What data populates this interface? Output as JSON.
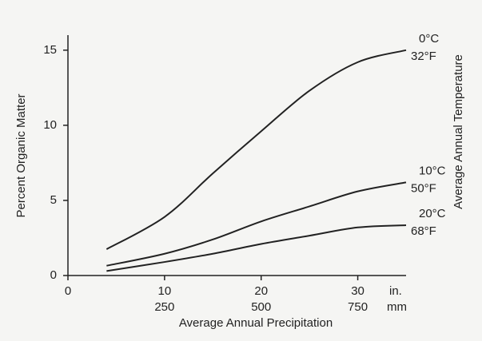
{
  "chart_data": {
    "type": "line",
    "x_label": "Average Annual Precipitation",
    "y_label": "Percent Organic Matter",
    "legend_title": "Average Annual Temperature",
    "x_unit": "in.",
    "x2_unit": "mm",
    "x": [
      4,
      10,
      15,
      20,
      25,
      30,
      35
    ],
    "series": [
      {
        "name": "0°C",
        "alt_name": "32°F",
        "color": "#222222",
        "values": [
          1.75,
          3.9,
          6.8,
          9.6,
          12.3,
          14.2,
          15.0
        ]
      },
      {
        "name": "10°C",
        "alt_name": "50°F",
        "color": "#222222",
        "values": [
          0.65,
          1.45,
          2.4,
          3.6,
          4.6,
          5.6,
          6.2
        ]
      },
      {
        "name": "20°C",
        "alt_name": "68°F",
        "color": "#222222",
        "values": [
          0.3,
          0.9,
          1.45,
          2.1,
          2.65,
          3.2,
          3.35
        ]
      }
    ],
    "xlim": [
      0,
      35
    ],
    "ylim": [
      0,
      16
    ],
    "xticks": [
      0,
      10,
      20,
      30
    ],
    "x2ticks": [
      {
        "value": 10,
        "label": "250"
      },
      {
        "value": 20,
        "label": "500"
      },
      {
        "value": 30,
        "label": "750"
      }
    ],
    "yticks": [
      0,
      5,
      10,
      15
    ]
  }
}
